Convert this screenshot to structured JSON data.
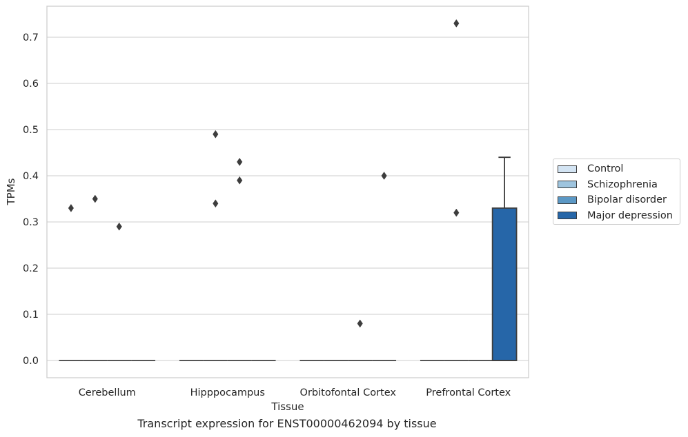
{
  "chart_data": {
    "type": "box",
    "caption": "Transcript expression for ENST00000462094 by tissue",
    "xlabel": "Tissue",
    "ylabel": "TPMs",
    "ylim": [
      -0.035,
      0.765
    ],
    "yticks": [
      0.0,
      0.1,
      0.2,
      0.3,
      0.4,
      0.5,
      0.6,
      0.7
    ],
    "ytick_labels": [
      "0.0",
      "0.1",
      "0.2",
      "0.3",
      "0.4",
      "0.5",
      "0.6",
      "0.7"
    ],
    "grid": true,
    "legend_position": "right",
    "categories": [
      "Cerebellum",
      "Hipppocampus",
      "Orbitofontal Cortex",
      "Prefrontal Cortex"
    ],
    "series": [
      {
        "name": "Control",
        "color": "#d3e4f3",
        "boxes": [
          {
            "q1": 0,
            "median": 0,
            "q3": 0,
            "whisker_low": 0,
            "whisker_high": 0,
            "outliers": [
              0.33
            ]
          },
          {
            "q1": 0,
            "median": 0,
            "q3": 0,
            "whisker_low": 0,
            "whisker_high": 0,
            "outliers": []
          },
          {
            "q1": 0,
            "median": 0,
            "q3": 0,
            "whisker_low": 0,
            "whisker_high": 0,
            "outliers": []
          },
          {
            "q1": 0,
            "median": 0,
            "q3": 0,
            "whisker_low": 0,
            "whisker_high": 0,
            "outliers": []
          }
        ]
      },
      {
        "name": "Schizophrenia",
        "color": "#9ec4de",
        "boxes": [
          {
            "q1": 0,
            "median": 0,
            "q3": 0,
            "whisker_low": 0,
            "whisker_high": 0,
            "outliers": [
              0.35
            ]
          },
          {
            "q1": 0,
            "median": 0,
            "q3": 0,
            "whisker_low": 0,
            "whisker_high": 0,
            "outliers": [
              0.49,
              0.34
            ]
          },
          {
            "q1": 0,
            "median": 0,
            "q3": 0,
            "whisker_low": 0,
            "whisker_high": 0,
            "outliers": []
          },
          {
            "q1": 0,
            "median": 0,
            "q3": 0,
            "whisker_low": 0,
            "whisker_high": 0,
            "outliers": [
              0.73,
              0.32
            ]
          }
        ]
      },
      {
        "name": "Bipolar disorder",
        "color": "#5b98c5",
        "boxes": [
          {
            "q1": 0,
            "median": 0,
            "q3": 0,
            "whisker_low": 0,
            "whisker_high": 0,
            "outliers": [
              0.29
            ]
          },
          {
            "q1": 0,
            "median": 0,
            "q3": 0,
            "whisker_low": 0,
            "whisker_high": 0,
            "outliers": [
              0.43,
              0.39
            ]
          },
          {
            "q1": 0,
            "median": 0,
            "q3": 0,
            "whisker_low": 0,
            "whisker_high": 0,
            "outliers": [
              0.08
            ]
          },
          {
            "q1": 0,
            "median": 0,
            "q3": 0,
            "whisker_low": 0,
            "whisker_high": 0,
            "outliers": []
          }
        ]
      },
      {
        "name": "Major depression",
        "color": "#2666a8",
        "boxes": [
          {
            "q1": 0,
            "median": 0,
            "q3": 0,
            "whisker_low": 0,
            "whisker_high": 0,
            "outliers": []
          },
          {
            "q1": 0,
            "median": 0,
            "q3": 0,
            "whisker_low": 0,
            "whisker_high": 0,
            "outliers": []
          },
          {
            "q1": 0,
            "median": 0,
            "q3": 0,
            "whisker_low": 0,
            "whisker_high": 0,
            "outliers": [
              0.4
            ]
          },
          {
            "q1": 0,
            "median": 0,
            "q3": 0.33,
            "whisker_low": 0,
            "whisker_high": 0.44,
            "outliers": []
          }
        ]
      }
    ]
  }
}
